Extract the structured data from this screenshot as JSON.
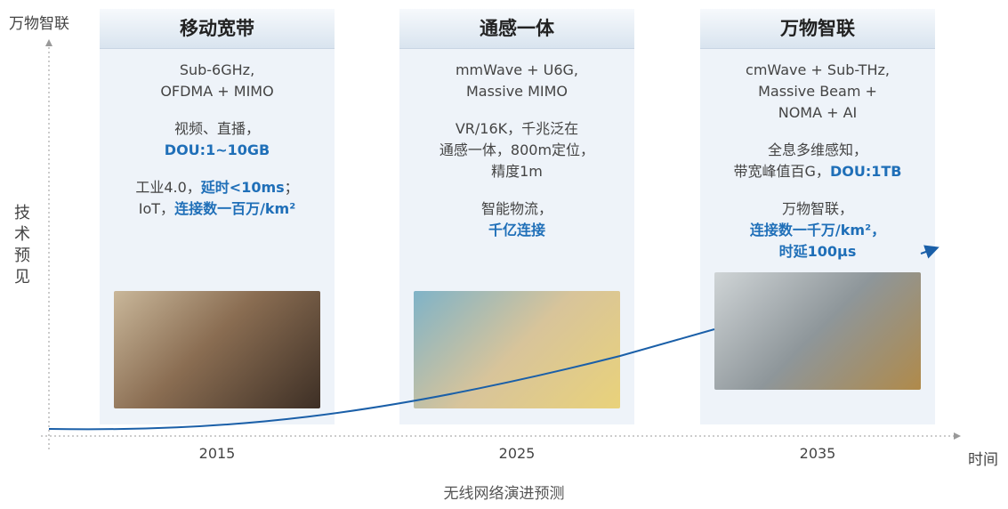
{
  "axis": {
    "y_top_label": "万物智联",
    "y_label": "技术预见",
    "x_label": "时间"
  },
  "caption": "无线网络演进预测",
  "columns": [
    {
      "title": "移动宽带",
      "year": "2015",
      "tech": [
        "Sub-6GHz,",
        "OFDMA + MIMO"
      ],
      "paragraphs": [
        [
          [
            {
              "text": "视频、直播，"
            }
          ],
          [
            {
              "text": "DOU:1~10GB",
              "strong": true
            }
          ]
        ],
        [
          [
            {
              "text": "工业4.0，"
            },
            {
              "text": "延时<10ms",
              "strong": true
            },
            {
              "text": "；"
            }
          ],
          [
            {
              "text": "IoT，"
            },
            {
              "text": "连接数一百万/km²",
              "strong": true
            }
          ]
        ]
      ]
    },
    {
      "title": "通感一体",
      "year": "2025",
      "tech": [
        "mmWave + U6G,",
        "Massive MIMO"
      ],
      "paragraphs": [
        [
          [
            {
              "text": "VR/16K，千兆泛在"
            }
          ],
          [
            {
              "text": "通感一体，800m定位，"
            }
          ],
          [
            {
              "text": "精度1m"
            }
          ]
        ],
        [
          [
            {
              "text": "智能物流，"
            }
          ],
          [
            {
              "text": "千亿连接",
              "strong": true
            }
          ]
        ]
      ]
    },
    {
      "title": "万物智联",
      "year": "2035",
      "tech": [
        "cmWave + Sub-THz,",
        "Massive Beam +",
        "NOMA + AI"
      ],
      "paragraphs": [
        [
          [
            {
              "text": "全息多维感知，"
            }
          ],
          [
            {
              "text": "带宽峰值百G，"
            },
            {
              "text": "DOU:1TB",
              "strong": true
            }
          ]
        ],
        [
          [
            {
              "text": "万物智联，"
            }
          ],
          [
            {
              "text": "连接数一千万/km²，",
              "strong": true
            }
          ],
          [
            {
              "text": "时延100μs",
              "strong": true
            }
          ]
        ]
      ]
    }
  ]
}
